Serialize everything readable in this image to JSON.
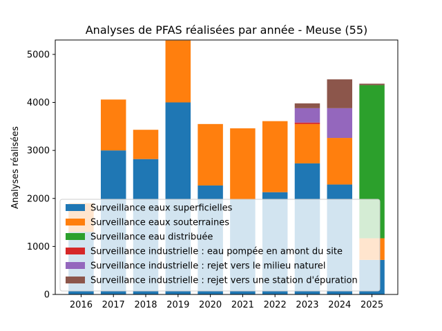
{
  "chart_data": {
    "type": "bar",
    "stacked": true,
    "title": "Analyses de PFAS réalisées par année - Meuse (55)",
    "xlabel": "",
    "ylabel": "Analyses réalisées",
    "ylim": [
      0,
      5300
    ],
    "yticks": [
      0,
      1000,
      2000,
      3000,
      4000,
      5000
    ],
    "categories": [
      "2016",
      "2017",
      "2018",
      "2019",
      "2020",
      "2021",
      "2022",
      "2023",
      "2024",
      "2025"
    ],
    "legend_position": "lower-left",
    "series": [
      {
        "name": "Surveillance eaux superficielles",
        "color": "#1f77b4",
        "values": [
          1300,
          3000,
          2820,
          4000,
          2270,
          1980,
          2130,
          2730,
          2290,
          720
        ]
      },
      {
        "name": "Surveillance eaux souterraines",
        "color": "#ff7f0e",
        "values": [
          600,
          1060,
          610,
          1290,
          1280,
          1480,
          1480,
          820,
          970,
          450
        ]
      },
      {
        "name": "Surveillance eau distribuée",
        "color": "#2ca02c",
        "values": [
          0,
          0,
          0,
          0,
          0,
          0,
          0,
          0,
          0,
          3190
        ]
      },
      {
        "name": "Surveillance industrielle : eau pompée en amont du site",
        "color": "#d62728",
        "values": [
          0,
          0,
          0,
          0,
          0,
          0,
          0,
          30,
          0,
          0
        ]
      },
      {
        "name": "Surveillance industrielle : rejet vers le milieu naturel",
        "color": "#9467bd",
        "values": [
          0,
          0,
          0,
          0,
          0,
          0,
          0,
          300,
          620,
          0
        ]
      },
      {
        "name": "Surveillance industrielle : rejet vers une station d'épuration",
        "color": "#8c564b",
        "values": [
          0,
          0,
          0,
          0,
          0,
          0,
          0,
          100,
          600,
          30
        ]
      }
    ]
  }
}
